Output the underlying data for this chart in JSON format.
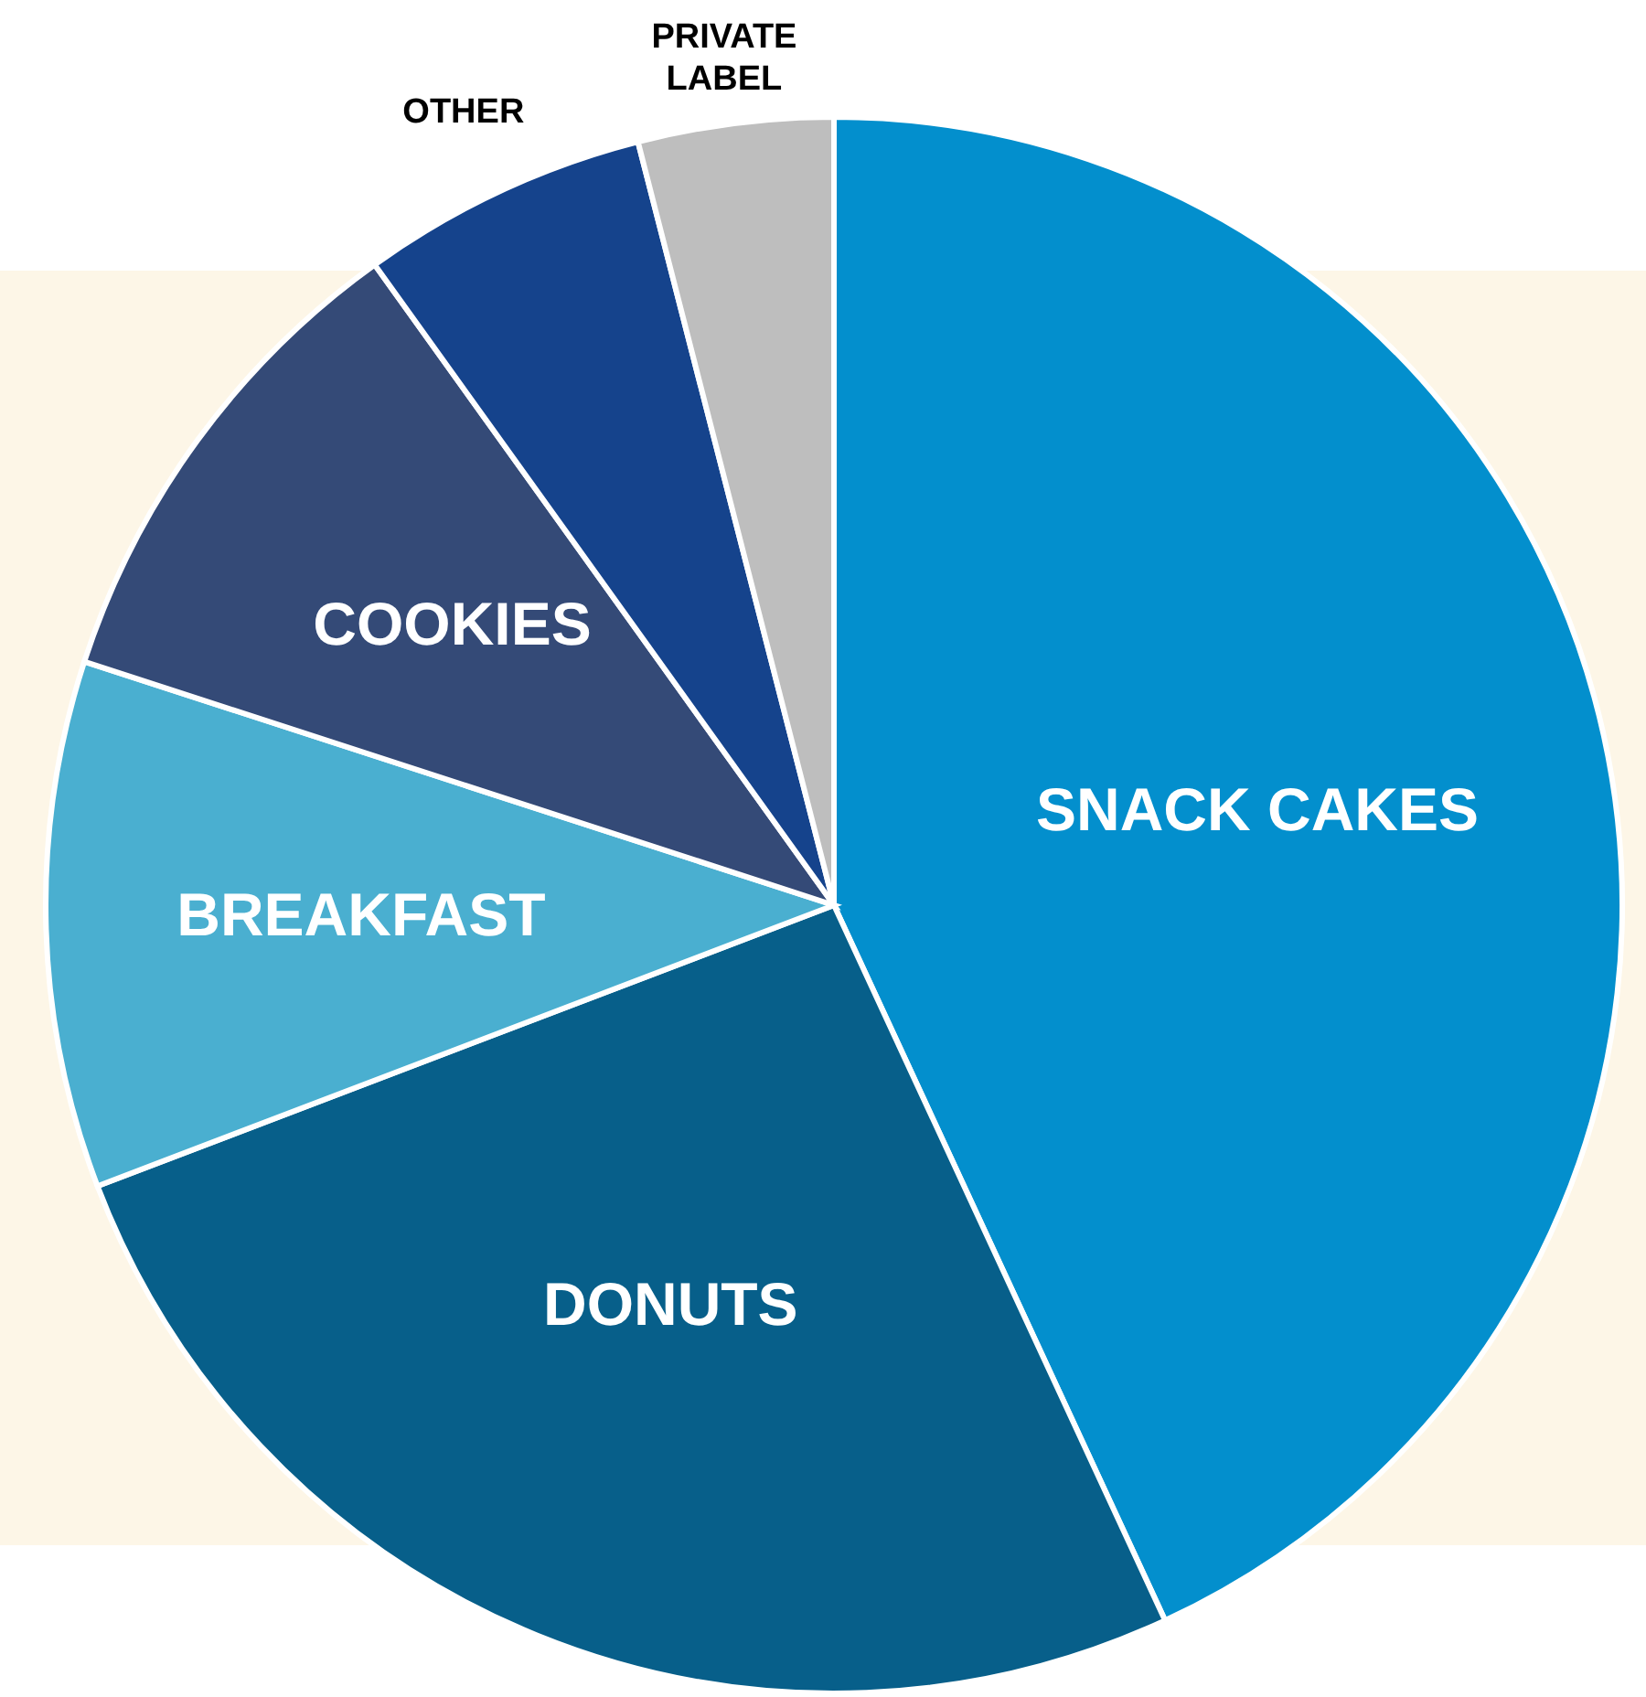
{
  "chart_data": {
    "type": "pie",
    "categories": [
      "SNACK CAKES",
      "DONUTS",
      "BREAKFAST",
      "COOKIES",
      "OTHER",
      "PRIVATE LABEL"
    ],
    "values": [
      43.1,
      26.1,
      10.8,
      10.1,
      5.9,
      4.0
    ],
    "colors": [
      "#038fcd",
      "#075f8a",
      "#4aafd0",
      "#344a77",
      "#15438c",
      "#bebebe"
    ]
  }
}
